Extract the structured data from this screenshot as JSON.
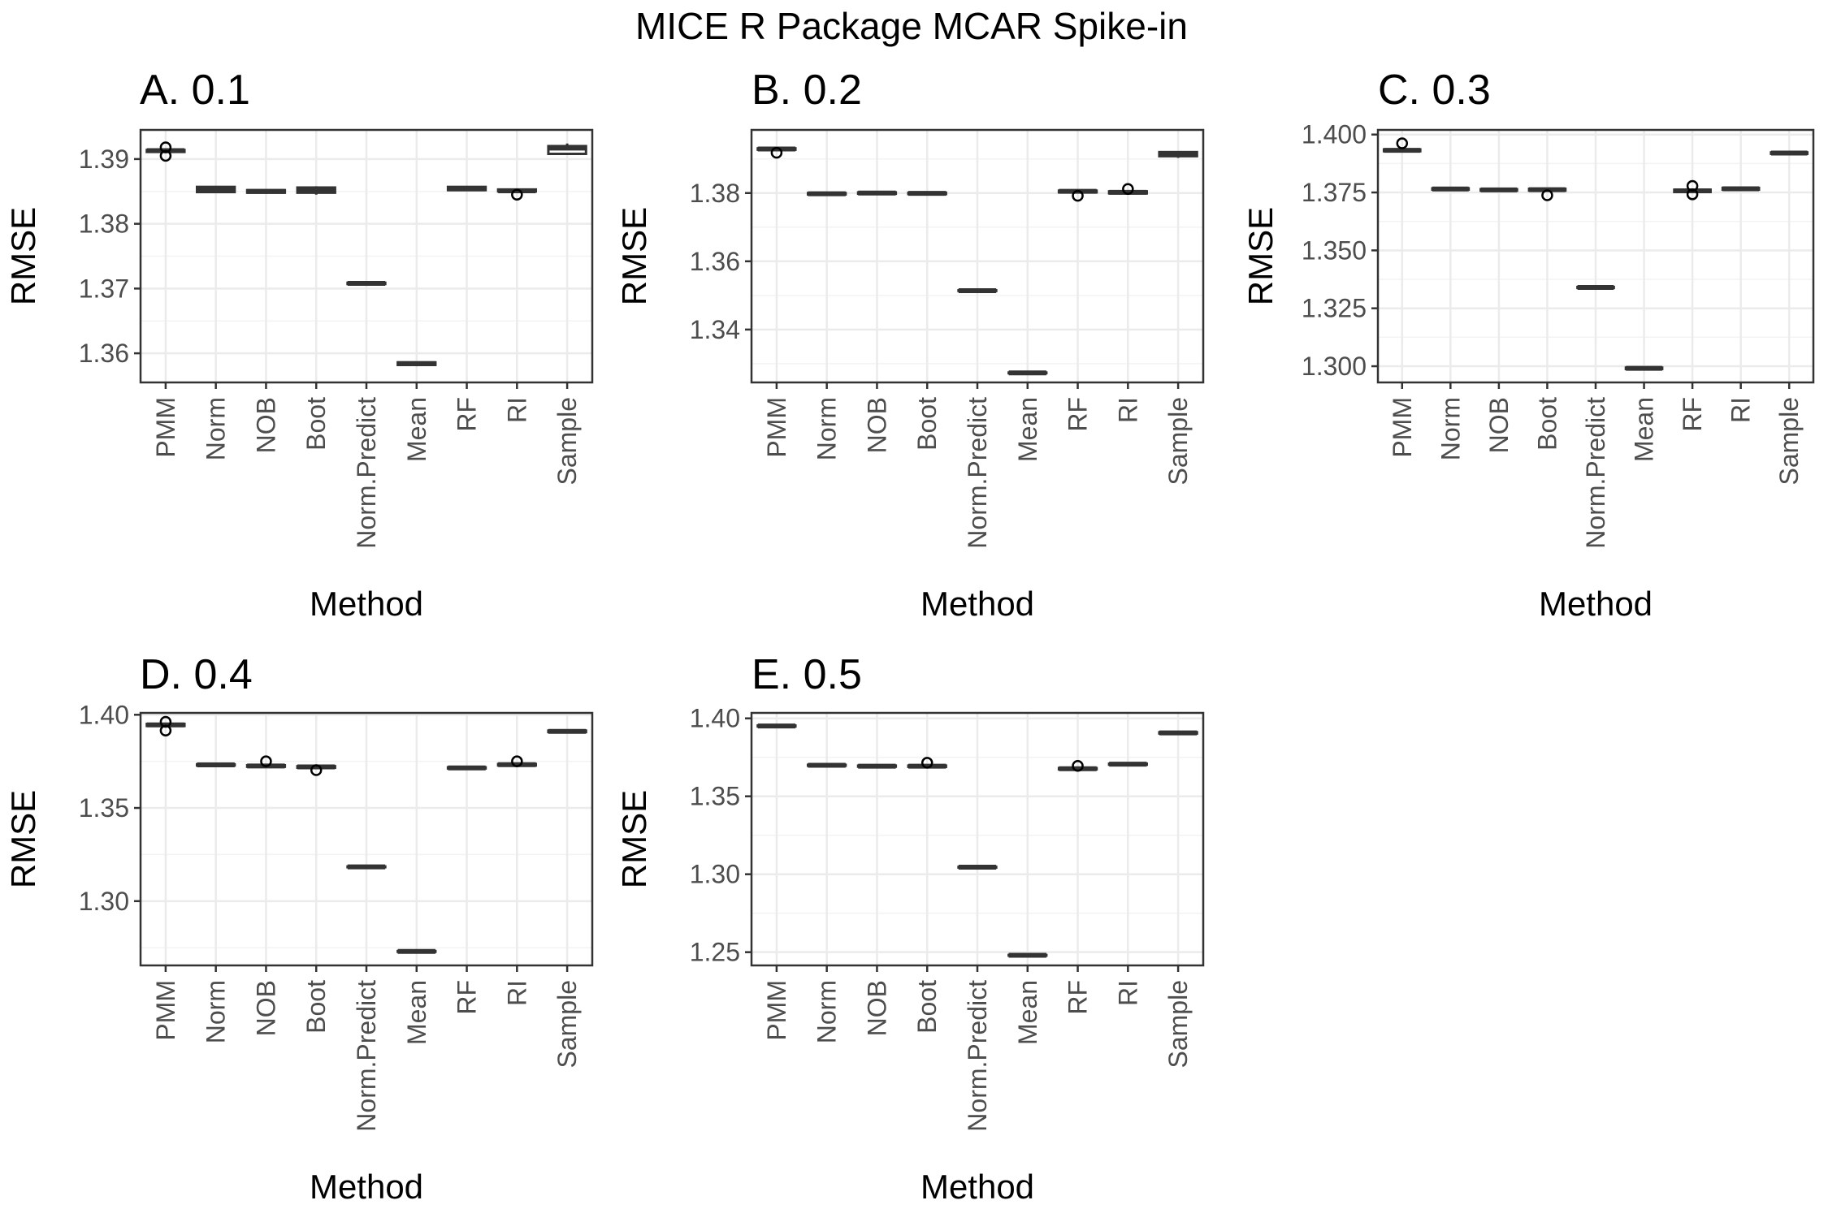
{
  "figure": {
    "title": "MICE R Package MCAR Spike-in"
  },
  "chart_data": [
    {
      "type": "box",
      "title": "A. 0.1",
      "xlabel": "Method",
      "ylabel": "RMSE",
      "categories": [
        "PMM",
        "Norm",
        "NOB",
        "Boot",
        "Norm.Predict",
        "Mean",
        "RF",
        "RI",
        "Sample"
      ],
      "ylim": [
        1.3555,
        1.3945
      ],
      "yticks": [
        1.36,
        1.37,
        1.38,
        1.39
      ],
      "ytick_labels": [
        "1.36",
        "1.37",
        "1.38",
        "1.39"
      ],
      "boxes": [
        {
          "low": 1.391,
          "q1": 1.3911,
          "median": 1.3913,
          "q3": 1.3914,
          "high": 1.3915,
          "outliers": [
            1.3905,
            1.3918
          ]
        },
        {
          "low": 1.3848,
          "q1": 1.3849,
          "median": 1.3852,
          "q3": 1.3857,
          "high": 1.3858,
          "outliers": []
        },
        {
          "low": 1.3847,
          "q1": 1.3848,
          "median": 1.385,
          "q3": 1.3852,
          "high": 1.3853,
          "outliers": []
        },
        {
          "low": 1.3845,
          "q1": 1.3848,
          "median": 1.3851,
          "q3": 1.3856,
          "high": 1.3858,
          "outliers": []
        },
        {
          "low": 1.3707,
          "q1": 1.3707,
          "median": 1.3708,
          "q3": 1.3709,
          "high": 1.3709,
          "outliers": []
        },
        {
          "low": 1.358,
          "q1": 1.3582,
          "median": 1.3584,
          "q3": 1.3586,
          "high": 1.3587,
          "outliers": []
        },
        {
          "low": 1.3852,
          "q1": 1.3852,
          "median": 1.3854,
          "q3": 1.3857,
          "high": 1.3858,
          "outliers": []
        },
        {
          "low": 1.3849,
          "q1": 1.385,
          "median": 1.3851,
          "q3": 1.3853,
          "high": 1.3853,
          "outliers": [
            1.3845
          ]
        },
        {
          "low": 1.3907,
          "q1": 1.3908,
          "median": 1.3917,
          "q3": 1.392,
          "high": 1.3924,
          "outliers": []
        }
      ]
    },
    {
      "type": "box",
      "title": "B. 0.2",
      "xlabel": "Method",
      "ylabel": "RMSE",
      "categories": [
        "PMM",
        "Norm",
        "NOB",
        "Boot",
        "Norm.Predict",
        "Mean",
        "RF",
        "RI",
        "Sample"
      ],
      "ylim": [
        1.3245,
        1.3985
      ],
      "yticks": [
        1.34,
        1.36,
        1.38
      ],
      "ytick_labels": [
        "1.34",
        "1.36",
        "1.38"
      ],
      "boxes": [
        {
          "low": 1.3925,
          "q1": 1.3927,
          "median": 1.3929,
          "q3": 1.3931,
          "high": 1.3932,
          "outliers": [
            1.3918
          ]
        },
        {
          "low": 1.3795,
          "q1": 1.3796,
          "median": 1.3798,
          "q3": 1.38,
          "high": 1.3801,
          "outliers": []
        },
        {
          "low": 1.3797,
          "q1": 1.3798,
          "median": 1.38,
          "q3": 1.3802,
          "high": 1.3803,
          "outliers": []
        },
        {
          "low": 1.3796,
          "q1": 1.3797,
          "median": 1.3799,
          "q3": 1.3801,
          "high": 1.3802,
          "outliers": []
        },
        {
          "low": 1.3512,
          "q1": 1.3513,
          "median": 1.3514,
          "q3": 1.3515,
          "high": 1.3516,
          "outliers": []
        },
        {
          "low": 1.3271,
          "q1": 1.3272,
          "median": 1.3273,
          "q3": 1.3274,
          "high": 1.3275,
          "outliers": []
        },
        {
          "low": 1.38,
          "q1": 1.3802,
          "median": 1.3805,
          "q3": 1.3807,
          "high": 1.3808,
          "outliers": [
            1.3792
          ]
        },
        {
          "low": 1.3798,
          "q1": 1.3799,
          "median": 1.3802,
          "q3": 1.3805,
          "high": 1.3806,
          "outliers": [
            1.3812
          ]
        },
        {
          "low": 1.3903,
          "q1": 1.3908,
          "median": 1.3914,
          "q3": 1.392,
          "high": 1.3922,
          "outliers": []
        }
      ]
    },
    {
      "type": "box",
      "title": "C. 0.3",
      "xlabel": "Method",
      "ylabel": "RMSE",
      "categories": [
        "PMM",
        "Norm",
        "NOB",
        "Boot",
        "Norm.Predict",
        "Mean",
        "RF",
        "RI",
        "Sample"
      ],
      "ylim": [
        1.293,
        1.402
      ],
      "yticks": [
        1.3,
        1.325,
        1.35,
        1.375,
        1.4
      ],
      "ytick_labels": [
        "1.300",
        "1.325",
        "1.350",
        "1.375",
        "1.400"
      ],
      "boxes": [
        {
          "low": 1.3925,
          "q1": 1.3928,
          "median": 1.3932,
          "q3": 1.3936,
          "high": 1.394,
          "outliers": [
            1.3962
          ]
        },
        {
          "low": 1.376,
          "q1": 1.3762,
          "median": 1.3765,
          "q3": 1.3768,
          "high": 1.3772,
          "outliers": []
        },
        {
          "low": 1.3755,
          "q1": 1.3758,
          "median": 1.3761,
          "q3": 1.3764,
          "high": 1.3768,
          "outliers": []
        },
        {
          "low": 1.3755,
          "q1": 1.3758,
          "median": 1.3762,
          "q3": 1.3766,
          "high": 1.377,
          "outliers": [
            1.3738
          ]
        },
        {
          "low": 1.3336,
          "q1": 1.3338,
          "median": 1.334,
          "q3": 1.3342,
          "high": 1.3344,
          "outliers": []
        },
        {
          "low": 1.2986,
          "q1": 1.2988,
          "median": 1.2991,
          "q3": 1.2994,
          "high": 1.2997,
          "outliers": []
        },
        {
          "low": 1.3748,
          "q1": 1.3752,
          "median": 1.3757,
          "q3": 1.3762,
          "high": 1.3766,
          "outliers": [
            1.3742,
            1.3778
          ]
        },
        {
          "low": 1.376,
          "q1": 1.3762,
          "median": 1.3766,
          "q3": 1.377,
          "high": 1.3774,
          "outliers": []
        },
        {
          "low": 1.3914,
          "q1": 1.3917,
          "median": 1.392,
          "q3": 1.3923,
          "high": 1.3926,
          "outliers": []
        }
      ]
    },
    {
      "type": "box",
      "title": "D. 0.4",
      "xlabel": "Method",
      "ylabel": "RMSE",
      "categories": [
        "PMM",
        "Norm",
        "NOB",
        "Boot",
        "Norm.Predict",
        "Mean",
        "RF",
        "RI",
        "Sample"
      ],
      "ylim": [
        1.2655,
        1.401
      ],
      "yticks": [
        1.3,
        1.35,
        1.4
      ],
      "ytick_labels": [
        "1.30",
        "1.35",
        "1.40"
      ],
      "boxes": [
        {
          "low": 1.3936,
          "q1": 1.394,
          "median": 1.3946,
          "q3": 1.3951,
          "high": 1.3955,
          "outliers": [
            1.3915,
            1.3962
          ]
        },
        {
          "low": 1.3725,
          "q1": 1.3728,
          "median": 1.3731,
          "q3": 1.3734,
          "high": 1.3737,
          "outliers": []
        },
        {
          "low": 1.3718,
          "q1": 1.3721,
          "median": 1.3725,
          "q3": 1.3729,
          "high": 1.3733,
          "outliers": [
            1.375
          ]
        },
        {
          "low": 1.3712,
          "q1": 1.3716,
          "median": 1.372,
          "q3": 1.3724,
          "high": 1.3728,
          "outliers": [
            1.3703
          ]
        },
        {
          "low": 1.318,
          "q1": 1.3182,
          "median": 1.3184,
          "q3": 1.3186,
          "high": 1.3188,
          "outliers": []
        },
        {
          "low": 1.2726,
          "q1": 1.2728,
          "median": 1.273,
          "q3": 1.2732,
          "high": 1.2734,
          "outliers": []
        },
        {
          "low": 1.3709,
          "q1": 1.3712,
          "median": 1.3715,
          "q3": 1.3718,
          "high": 1.3721,
          "outliers": []
        },
        {
          "low": 1.3725,
          "q1": 1.3728,
          "median": 1.3732,
          "q3": 1.3736,
          "high": 1.3739,
          "outliers": [
            1.375
          ]
        },
        {
          "low": 1.3904,
          "q1": 1.3907,
          "median": 1.3911,
          "q3": 1.3915,
          "high": 1.3918,
          "outliers": []
        }
      ]
    },
    {
      "type": "box",
      "title": "E. 0.5",
      "xlabel": "Method",
      "ylabel": "RMSE",
      "categories": [
        "PMM",
        "Norm",
        "NOB",
        "Boot",
        "Norm.Predict",
        "Mean",
        "RF",
        "RI",
        "Sample"
      ],
      "ylim": [
        1.2415,
        1.4035
      ],
      "yticks": [
        1.25,
        1.3,
        1.35,
        1.4
      ],
      "ytick_labels": [
        "1.25",
        "1.30",
        "1.35",
        "1.40"
      ],
      "boxes": [
        {
          "low": 1.3945,
          "q1": 1.3948,
          "median": 1.3951,
          "q3": 1.3954,
          "high": 1.3957,
          "outliers": []
        },
        {
          "low": 1.3693,
          "q1": 1.3696,
          "median": 1.3699,
          "q3": 1.3702,
          "high": 1.3705,
          "outliers": []
        },
        {
          "low": 1.3687,
          "q1": 1.369,
          "median": 1.3693,
          "q3": 1.3697,
          "high": 1.37,
          "outliers": []
        },
        {
          "low": 1.3686,
          "q1": 1.3689,
          "median": 1.3693,
          "q3": 1.3697,
          "high": 1.37,
          "outliers": [
            1.3715
          ]
        },
        {
          "low": 1.3041,
          "q1": 1.3043,
          "median": 1.3045,
          "q3": 1.3047,
          "high": 1.3049,
          "outliers": []
        },
        {
          "low": 1.2476,
          "q1": 1.2478,
          "median": 1.248,
          "q3": 1.2482,
          "high": 1.2484,
          "outliers": []
        },
        {
          "low": 1.3669,
          "q1": 1.3673,
          "median": 1.3677,
          "q3": 1.3681,
          "high": 1.3685,
          "outliers": [
            1.3695
          ]
        },
        {
          "low": 1.37,
          "q1": 1.3703,
          "median": 1.3706,
          "q3": 1.3709,
          "high": 1.3712,
          "outliers": []
        },
        {
          "low": 1.39,
          "q1": 1.3903,
          "median": 1.3907,
          "q3": 1.3911,
          "high": 1.3914,
          "outliers": []
        }
      ]
    }
  ]
}
